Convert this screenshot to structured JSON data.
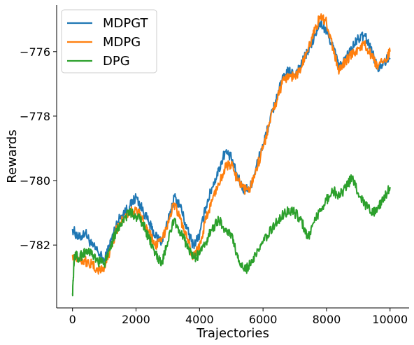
{
  "chart_data": {
    "type": "line",
    "title": "",
    "xlabel": "Trajectories",
    "ylabel": "Rewards",
    "xlim": [
      -500,
      10600
    ],
    "ylim": [
      -783.95,
      -774.55
    ],
    "xticks": [
      0,
      2000,
      4000,
      6000,
      8000,
      10000
    ],
    "yticks": [
      -782,
      -780,
      -778,
      -776
    ],
    "xtick_labels": [
      "0",
      "2000",
      "4000",
      "6000",
      "8000",
      "10000"
    ],
    "ytick_labels": [
      "−782",
      "−780",
      "−778",
      "−776"
    ],
    "grid": false,
    "legend_position": "top-left",
    "series": [
      {
        "name": "MDPGT",
        "color": "#1f77b4",
        "points": [
          [
            0,
            -781.5
          ],
          [
            200,
            -781.8
          ],
          [
            400,
            -781.6
          ],
          [
            600,
            -782.0
          ],
          [
            800,
            -782.2
          ],
          [
            1000,
            -782.5
          ],
          [
            1200,
            -781.9
          ],
          [
            1400,
            -781.3
          ],
          [
            1600,
            -781.0
          ],
          [
            1800,
            -780.8
          ],
          [
            2000,
            -780.5
          ],
          [
            2200,
            -780.9
          ],
          [
            2400,
            -781.3
          ],
          [
            2600,
            -781.7
          ],
          [
            2800,
            -781.9
          ],
          [
            3000,
            -781.3
          ],
          [
            3200,
            -780.5
          ],
          [
            3400,
            -780.8
          ],
          [
            3600,
            -781.5
          ],
          [
            3800,
            -782.0
          ],
          [
            4000,
            -781.7
          ],
          [
            4200,
            -780.8
          ],
          [
            4400,
            -780.2
          ],
          [
            4600,
            -779.7
          ],
          [
            4800,
            -779.1
          ],
          [
            5000,
            -779.3
          ],
          [
            5200,
            -779.9
          ],
          [
            5400,
            -780.3
          ],
          [
            5600,
            -780.2
          ],
          [
            5800,
            -779.5
          ],
          [
            6000,
            -778.9
          ],
          [
            6200,
            -778.2
          ],
          [
            6400,
            -777.5
          ],
          [
            6600,
            -776.9
          ],
          [
            6800,
            -776.6
          ],
          [
            7000,
            -776.7
          ],
          [
            7200,
            -776.4
          ],
          [
            7400,
            -776.0
          ],
          [
            7600,
            -775.6
          ],
          [
            7800,
            -775.1
          ],
          [
            8000,
            -775.4
          ],
          [
            8200,
            -775.8
          ],
          [
            8400,
            -776.5
          ],
          [
            8600,
            -776.2
          ],
          [
            8800,
            -775.9
          ],
          [
            9000,
            -775.6
          ],
          [
            9200,
            -775.5
          ],
          [
            9400,
            -775.9
          ],
          [
            9600,
            -776.5
          ],
          [
            9800,
            -776.3
          ],
          [
            10000,
            -776.2
          ]
        ]
      },
      {
        "name": "MDPG",
        "color": "#ff7f0e",
        "points": [
          [
            0,
            -782.3
          ],
          [
            200,
            -782.4
          ],
          [
            400,
            -782.5
          ],
          [
            600,
            -782.6
          ],
          [
            800,
            -782.8
          ],
          [
            1000,
            -782.7
          ],
          [
            1200,
            -782.1
          ],
          [
            1400,
            -781.5
          ],
          [
            1600,
            -781.2
          ],
          [
            1800,
            -781.0
          ],
          [
            2000,
            -780.9
          ],
          [
            2200,
            -781.2
          ],
          [
            2400,
            -781.6
          ],
          [
            2600,
            -782.0
          ],
          [
            2800,
            -781.9
          ],
          [
            3000,
            -781.3
          ],
          [
            3200,
            -780.7
          ],
          [
            3400,
            -781.2
          ],
          [
            3600,
            -781.8
          ],
          [
            3800,
            -782.4
          ],
          [
            4000,
            -782.0
          ],
          [
            4200,
            -781.2
          ],
          [
            4400,
            -780.6
          ],
          [
            4600,
            -780.1
          ],
          [
            4800,
            -779.6
          ],
          [
            5000,
            -779.5
          ],
          [
            5200,
            -780.0
          ],
          [
            5400,
            -780.3
          ],
          [
            5600,
            -780.2
          ],
          [
            5800,
            -779.6
          ],
          [
            6000,
            -779.0
          ],
          [
            6200,
            -778.2
          ],
          [
            6400,
            -777.6
          ],
          [
            6600,
            -777.0
          ],
          [
            6800,
            -776.7
          ],
          [
            7000,
            -776.8
          ],
          [
            7200,
            -776.5
          ],
          [
            7400,
            -776.0
          ],
          [
            7600,
            -775.4
          ],
          [
            7800,
            -774.9
          ],
          [
            8000,
            -775.1
          ],
          [
            8200,
            -775.9
          ],
          [
            8400,
            -776.6
          ],
          [
            8600,
            -776.3
          ],
          [
            8800,
            -776.1
          ],
          [
            9000,
            -775.9
          ],
          [
            9200,
            -775.8
          ],
          [
            9400,
            -776.1
          ],
          [
            9600,
            -776.5
          ],
          [
            9800,
            -776.3
          ],
          [
            10000,
            -776.0
          ]
        ]
      },
      {
        "name": "DPG",
        "color": "#2ca02c",
        "points": [
          [
            0,
            -783.5
          ],
          [
            60,
            -782.3
          ],
          [
            200,
            -782.4
          ],
          [
            400,
            -782.2
          ],
          [
            600,
            -782.3
          ],
          [
            800,
            -782.5
          ],
          [
            1000,
            -782.6
          ],
          [
            1200,
            -782.0
          ],
          [
            1400,
            -781.5
          ],
          [
            1600,
            -781.2
          ],
          [
            1800,
            -781.0
          ],
          [
            2000,
            -781.1
          ],
          [
            2200,
            -781.3
          ],
          [
            2400,
            -781.8
          ],
          [
            2600,
            -782.2
          ],
          [
            2800,
            -782.6
          ],
          [
            3000,
            -781.9
          ],
          [
            3200,
            -781.2
          ],
          [
            3400,
            -781.6
          ],
          [
            3600,
            -782.0
          ],
          [
            3800,
            -782.4
          ],
          [
            4000,
            -782.3
          ],
          [
            4200,
            -781.9
          ],
          [
            4400,
            -781.5
          ],
          [
            4600,
            -781.2
          ],
          [
            4800,
            -781.5
          ],
          [
            5000,
            -781.7
          ],
          [
            5200,
            -782.4
          ],
          [
            5400,
            -782.8
          ],
          [
            5600,
            -782.6
          ],
          [
            5800,
            -782.3
          ],
          [
            6000,
            -781.9
          ],
          [
            6200,
            -781.6
          ],
          [
            6400,
            -781.3
          ],
          [
            6600,
            -781.1
          ],
          [
            6800,
            -780.9
          ],
          [
            7000,
            -781.0
          ],
          [
            7200,
            -781.2
          ],
          [
            7400,
            -781.8
          ],
          [
            7600,
            -781.3
          ],
          [
            7800,
            -780.9
          ],
          [
            8000,
            -780.6
          ],
          [
            8200,
            -780.3
          ],
          [
            8400,
            -780.5
          ],
          [
            8600,
            -780.2
          ],
          [
            8800,
            -779.9
          ],
          [
            9000,
            -780.4
          ],
          [
            9200,
            -780.7
          ],
          [
            9400,
            -781.0
          ],
          [
            9600,
            -780.9
          ],
          [
            9800,
            -780.6
          ],
          [
            10000,
            -780.2
          ]
        ]
      }
    ]
  }
}
